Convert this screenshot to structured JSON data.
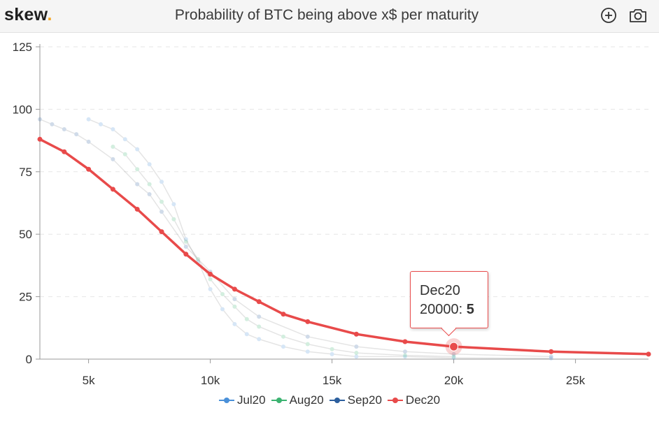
{
  "header": {
    "brand": "skew",
    "brand_dot": ".",
    "title": "Probability of BTC being above x$ per maturity"
  },
  "icons": [
    "zoom-in-icon",
    "camera-icon"
  ],
  "tooltip": {
    "series": "Dec20",
    "x_label": "20000",
    "value": "5"
  },
  "chart_data": {
    "type": "line",
    "title": "Probability of BTC being above x$ per maturity",
    "xlabel": "",
    "ylabel": "",
    "xlim": [
      3000,
      28000
    ],
    "ylim": [
      0,
      125
    ],
    "x_ticks": [
      5000,
      10000,
      15000,
      20000,
      25000
    ],
    "x_tick_labels": [
      "5k",
      "10k",
      "15k",
      "20k",
      "25k"
    ],
    "y_ticks": [
      0,
      25,
      50,
      75,
      100,
      125
    ],
    "y_tick_labels": [
      "0",
      "25",
      "50",
      "75",
      "100",
      "125"
    ],
    "grid": true,
    "legend_position": "bottom",
    "series": [
      {
        "name": "Jul20",
        "color": "#4a90d9",
        "points": [
          [
            5000,
            96
          ],
          [
            5500,
            94
          ],
          [
            6000,
            92
          ],
          [
            6500,
            88
          ],
          [
            7000,
            84
          ],
          [
            7500,
            78
          ],
          [
            8000,
            71
          ],
          [
            8500,
            62
          ],
          [
            9000,
            48
          ],
          [
            9500,
            39
          ],
          [
            10000,
            28
          ],
          [
            10500,
            20
          ],
          [
            11000,
            14
          ],
          [
            11500,
            10
          ],
          [
            12000,
            8
          ],
          [
            13000,
            5
          ],
          [
            14000,
            3
          ],
          [
            15000,
            2
          ],
          [
            16000,
            1
          ],
          [
            18000,
            1
          ],
          [
            20000,
            0.5
          ],
          [
            24000,
            0.3
          ]
        ]
      },
      {
        "name": "Aug20",
        "color": "#3cb371",
        "points": [
          [
            6000,
            85
          ],
          [
            6500,
            82
          ],
          [
            7000,
            76
          ],
          [
            7500,
            70
          ],
          [
            8000,
            63
          ],
          [
            8500,
            56
          ],
          [
            9000,
            47
          ],
          [
            9500,
            40
          ],
          [
            10000,
            32
          ],
          [
            10500,
            26
          ],
          [
            11000,
            21
          ],
          [
            11500,
            16
          ],
          [
            12000,
            13
          ],
          [
            13000,
            9
          ],
          [
            14000,
            6
          ],
          [
            15000,
            4
          ],
          [
            16000,
            2.5
          ],
          [
            18000,
            1.5
          ],
          [
            20000,
            1
          ]
        ]
      },
      {
        "name": "Sep20",
        "color": "#2c5f9e",
        "points": [
          [
            3000,
            96
          ],
          [
            3500,
            94
          ],
          [
            4000,
            92
          ],
          [
            4500,
            90
          ],
          [
            5000,
            87
          ],
          [
            6000,
            80
          ],
          [
            7000,
            70
          ],
          [
            7500,
            66
          ],
          [
            8000,
            59
          ],
          [
            9000,
            45
          ],
          [
            10000,
            35
          ],
          [
            11000,
            24
          ],
          [
            12000,
            17
          ],
          [
            14000,
            9
          ],
          [
            16000,
            5
          ],
          [
            18000,
            3
          ],
          [
            20000,
            2
          ],
          [
            24000,
            1
          ]
        ]
      },
      {
        "name": "Dec20",
        "color": "#e84a4a",
        "points": [
          [
            3000,
            88
          ],
          [
            4000,
            83
          ],
          [
            5000,
            76
          ],
          [
            6000,
            68
          ],
          [
            7000,
            60
          ],
          [
            8000,
            51
          ],
          [
            9000,
            42
          ],
          [
            10000,
            34
          ],
          [
            11000,
            28
          ],
          [
            12000,
            23
          ],
          [
            13000,
            18
          ],
          [
            14000,
            15
          ],
          [
            16000,
            10
          ],
          [
            18000,
            7
          ],
          [
            20000,
            5
          ],
          [
            24000,
            3
          ],
          [
            28000,
            2
          ]
        ]
      }
    ]
  }
}
